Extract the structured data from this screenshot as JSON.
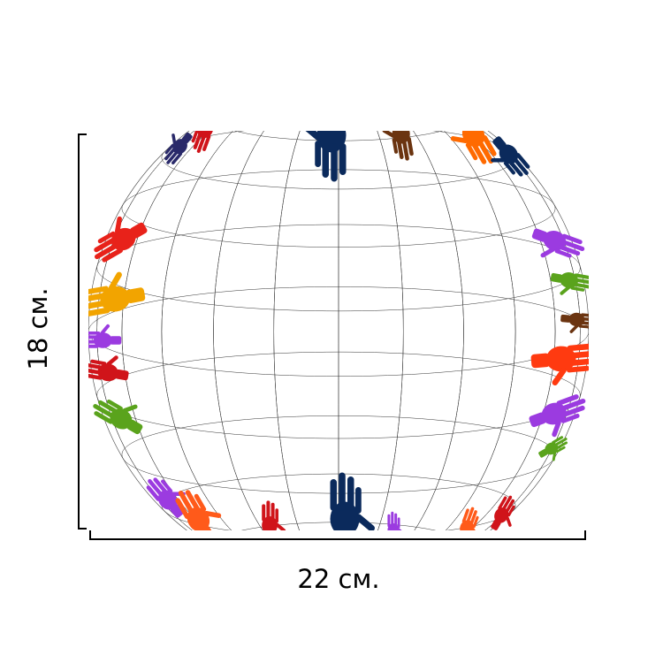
{
  "dimensions": {
    "height_label": "18 см.",
    "width_label": "22 см."
  }
}
